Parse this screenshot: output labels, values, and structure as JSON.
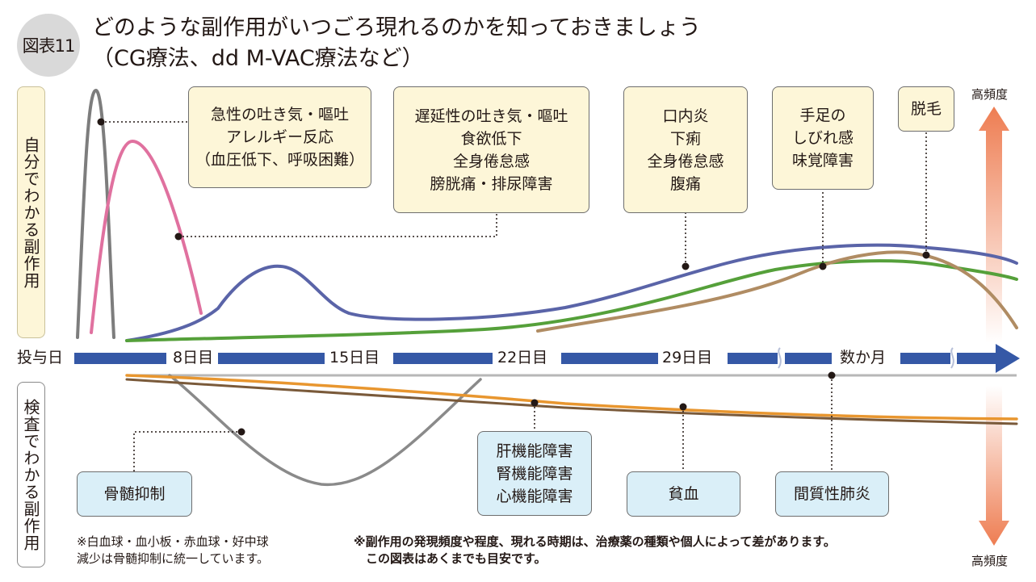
{
  "figure": {
    "badge": "図表11",
    "title_line1": "どのような副作用がいつごろ現れるのかを知っておきましょう",
    "title_line2": "（CG療法、dd M-VAC療法など）"
  },
  "panels": {
    "self_detectable": "自分でわかる副作用",
    "test_detectable": "検査でわかる副作用"
  },
  "timeline": {
    "start": "投与日",
    "labels": [
      "8日目",
      "15日目",
      "22日目",
      "29日目",
      "数か月"
    ]
  },
  "frequency": {
    "top_label": "高頻度",
    "bottom_label": "高頻度"
  },
  "self_effects": [
    {
      "text": "急性の吐き気・嘔吐\nアレルギー反応\n（血圧低下、呼吸困難）"
    },
    {
      "text": "遅延性の吐き気・嘔吐\n食欲低下\n全身倦怠感\n膀胱痛・排尿障害"
    },
    {
      "text": "口内炎\n下痢\n全身倦怠感\n腹痛"
    },
    {
      "text": "手足の\nしびれ感\n味覚障害"
    },
    {
      "text": "脱毛"
    }
  ],
  "test_effects": [
    {
      "text": "骨髄抑制"
    },
    {
      "text": "肝機能障害\n腎機能障害\n心機能障害"
    },
    {
      "text": "貧血"
    },
    {
      "text": "間質性肺炎"
    }
  ],
  "notes": {
    "left": "※白血球・血小板・赤血球・好中球\n減少は骨髄抑制に統一しています。",
    "right": "※副作用の発現頻度や程度、現れる時期は、治療薬の種類や個人によって差があります。\n　この図表はあくまでも目安です。"
  },
  "colors": {
    "gray_curve": "#7d7d7d",
    "pink_curve": "#e0719f",
    "blue_curve": "#5a64a8",
    "green_curve": "#55a03a",
    "tan_curve": "#b08c63",
    "orange_curve": "#e8962f",
    "brown_curve": "#7a5a3a",
    "axis_arrow": "#3558a6",
    "freq_arrow": "#ee7d52"
  }
}
